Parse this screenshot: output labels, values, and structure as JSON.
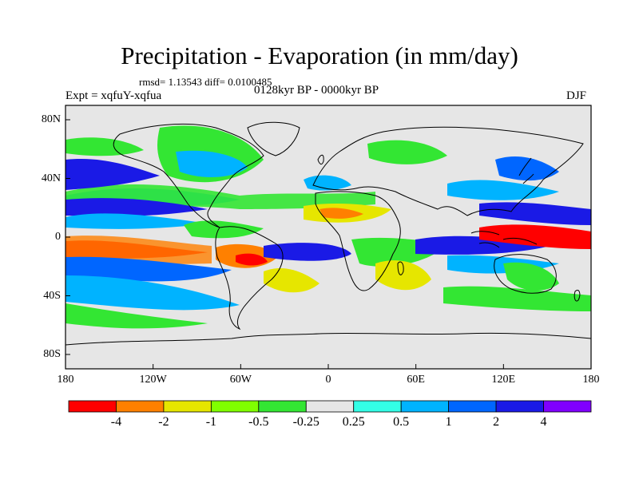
{
  "header": {
    "title": "Precipitation - Evaporation (in mm/day)",
    "stats": "rmsd= 1.13543 diff= 0.0100485",
    "expt": "Expt = xqfuY-xqfua",
    "period": "0128kyr BP - 0000kyr BP",
    "season": "DJF"
  },
  "axes": {
    "lat_labels": [
      "80N",
      "40N",
      "0",
      "40S",
      "80S"
    ],
    "lon_labels": [
      "180",
      "120W",
      "60W",
      "0",
      "60E",
      "120E",
      "180"
    ]
  },
  "colorbar": {
    "labels": [
      "-4",
      "-2",
      "-1",
      "-0.5",
      "-0.25",
      "0.25",
      "0.5",
      "1",
      "2",
      "4"
    ],
    "colors": [
      "#ff0000",
      "#ff8000",
      "#e6e600",
      "#80ff00",
      "#33e633",
      "#e6e6e6",
      "#33ffe6",
      "#00b3ff",
      "#0066ff",
      "#1a1ae6",
      "#8000ff"
    ]
  },
  "colors": {
    "land_line": "#000000",
    "neutral": "#e6e6e6"
  }
}
